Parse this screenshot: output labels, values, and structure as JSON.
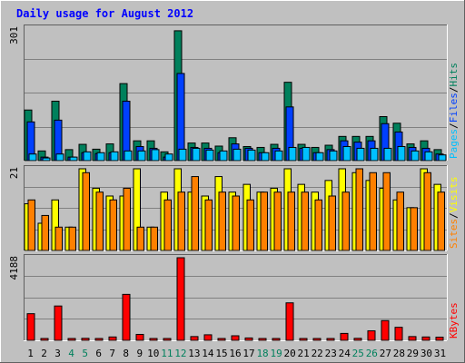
{
  "colors": {
    "page_bg": "#C0C0C0",
    "plot_bg": "#C0C0C0",
    "grid": "#808080",
    "title": "#0000FF",
    "hits": "#00805C",
    "files": "#0040FF",
    "pages": "#00C0FF",
    "visits": "#FFFF00",
    "sites": "#FF8000",
    "kbytes": "#FF0000",
    "weekend_label": "#00805C",
    "weekday_label": "#000000"
  },
  "chart_data": [
    {
      "type": "bar",
      "title": "Daily usage for August 2012",
      "ymax_label": "301",
      "ylim": [
        0,
        301
      ],
      "categories": [
        "1",
        "2",
        "3",
        "4",
        "5",
        "6",
        "7",
        "8",
        "9",
        "10",
        "11",
        "12",
        "13",
        "14",
        "15",
        "16",
        "17",
        "18",
        "19",
        "20",
        "21",
        "22",
        "23",
        "24",
        "25",
        "26",
        "27",
        "28",
        "29",
        "30",
        "31"
      ],
      "legend": [
        {
          "name": "Pages",
          "color_key": "pages"
        },
        {
          "name": "/",
          "color_key": "weekday_label"
        },
        {
          "name": "Files",
          "color_key": "files"
        },
        {
          "name": "/",
          "color_key": "weekday_label"
        },
        {
          "name": "Hits",
          "color_key": "hits"
        }
      ],
      "series": [
        {
          "name": "Hits",
          "color_key": "hits",
          "values": [
            115,
            22,
            135,
            25,
            37,
            26,
            38,
            175,
            45,
            45,
            20,
            295,
            40,
            40,
            33,
            52,
            32,
            30,
            37,
            178,
            37,
            30,
            35,
            55,
            55,
            55,
            100,
            85,
            38,
            45,
            25
          ]
        },
        {
          "name": "Files",
          "color_key": "files",
          "values": [
            88,
            8,
            92,
            8,
            18,
            16,
            18,
            135,
            32,
            28,
            8,
            198,
            30,
            28,
            18,
            38,
            28,
            18,
            28,
            122,
            28,
            18,
            25,
            45,
            42,
            45,
            84,
            65,
            30,
            28,
            15
          ]
        },
        {
          "name": "Pages",
          "color_key": "pages",
          "values": [
            15,
            6,
            15,
            8,
            20,
            18,
            20,
            22,
            22,
            25,
            15,
            26,
            28,
            24,
            22,
            26,
            24,
            18,
            22,
            30,
            30,
            18,
            22,
            32,
            28,
            28,
            28,
            32,
            22,
            20,
            13
          ]
        }
      ]
    },
    {
      "type": "bar",
      "ymax_label": "21",
      "ylim": [
        0,
        21
      ],
      "categories": [
        "1",
        "2",
        "3",
        "4",
        "5",
        "6",
        "7",
        "8",
        "9",
        "10",
        "11",
        "12",
        "13",
        "14",
        "15",
        "16",
        "17",
        "18",
        "19",
        "20",
        "21",
        "22",
        "23",
        "24",
        "25",
        "26",
        "27",
        "28",
        "29",
        "30",
        "31"
      ],
      "legend": [
        {
          "name": "Sites",
          "color_key": "sites"
        },
        {
          "name": "/",
          "color_key": "weekday_label"
        },
        {
          "name": "Visits",
          "color_key": "visits"
        }
      ],
      "series": [
        {
          "name": "Visits",
          "color_key": "visits",
          "values": [
            12,
            7,
            13,
            6,
            21,
            16,
            14,
            14,
            21,
            6,
            15,
            21,
            15,
            14,
            19,
            15,
            17,
            15,
            16,
            21,
            17,
            15,
            18,
            21,
            20,
            18,
            16,
            13,
            11,
            21,
            17
          ]
        },
        {
          "name": "Sites",
          "color_key": "sites",
          "values": [
            13,
            9,
            6,
            6,
            20,
            15,
            13,
            16,
            6,
            6,
            13,
            15,
            19,
            13,
            15,
            14,
            13,
            15,
            15,
            15,
            15,
            13,
            14,
            15,
            21,
            20,
            20,
            15,
            11,
            20,
            15
          ]
        }
      ]
    },
    {
      "type": "bar",
      "ymax_label": "4188",
      "ylim": [
        0,
        4188
      ],
      "categories": [
        "1",
        "2",
        "3",
        "4",
        "5",
        "6",
        "7",
        "8",
        "9",
        "10",
        "11",
        "12",
        "13",
        "14",
        "15",
        "16",
        "17",
        "18",
        "19",
        "20",
        "21",
        "22",
        "23",
        "24",
        "25",
        "26",
        "27",
        "28",
        "29",
        "30",
        "31"
      ],
      "legend": [
        {
          "name": "KBytes",
          "color_key": "kbytes"
        }
      ],
      "series": [
        {
          "name": "KBytes",
          "color_key": "kbytes",
          "values": [
            1350,
            60,
            1740,
            60,
            100,
            60,
            170,
            2330,
            300,
            90,
            60,
            4188,
            190,
            280,
            60,
            230,
            120,
            90,
            90,
            1900,
            60,
            60,
            60,
            350,
            100,
            480,
            1000,
            660,
            190,
            170,
            160
          ]
        }
      ]
    }
  ],
  "x_labels": [
    {
      "text": "1",
      "weekend": false
    },
    {
      "text": "2",
      "weekend": false
    },
    {
      "text": "3",
      "weekend": false
    },
    {
      "text": "4",
      "weekend": true
    },
    {
      "text": "5",
      "weekend": true
    },
    {
      "text": "6",
      "weekend": false
    },
    {
      "text": "7",
      "weekend": false
    },
    {
      "text": "8",
      "weekend": false
    },
    {
      "text": "9",
      "weekend": false
    },
    {
      "text": "10",
      "weekend": false
    },
    {
      "text": "11",
      "weekend": true
    },
    {
      "text": "12",
      "weekend": true
    },
    {
      "text": "13",
      "weekend": false
    },
    {
      "text": "14",
      "weekend": false
    },
    {
      "text": "15",
      "weekend": false
    },
    {
      "text": "16",
      "weekend": false
    },
    {
      "text": "17",
      "weekend": false
    },
    {
      "text": "18",
      "weekend": true
    },
    {
      "text": "19",
      "weekend": true
    },
    {
      "text": "20",
      "weekend": false
    },
    {
      "text": "21",
      "weekend": false
    },
    {
      "text": "22",
      "weekend": false
    },
    {
      "text": "23",
      "weekend": false
    },
    {
      "text": "24",
      "weekend": false
    },
    {
      "text": "25",
      "weekend": true
    },
    {
      "text": "26",
      "weekend": true
    },
    {
      "text": "27",
      "weekend": false
    },
    {
      "text": "28",
      "weekend": false
    },
    {
      "text": "29",
      "weekend": false
    },
    {
      "text": "30",
      "weekend": false
    },
    {
      "text": "31",
      "weekend": false
    }
  ]
}
